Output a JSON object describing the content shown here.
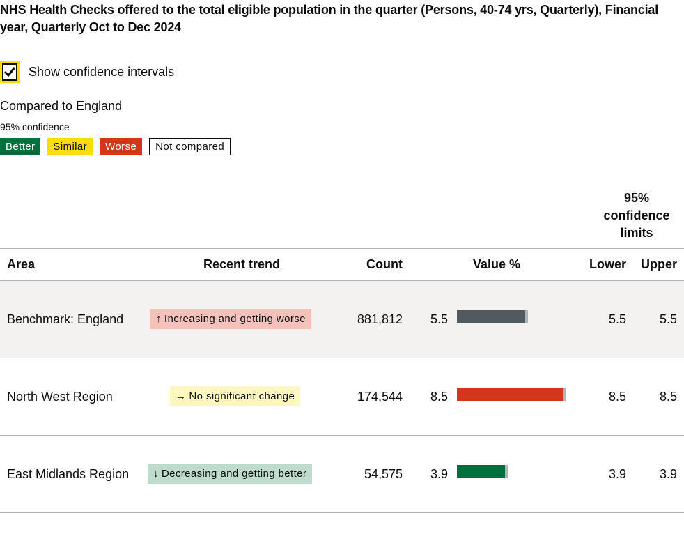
{
  "title": "NHS Health Checks offered to the total eligible population in the quarter (Persons, 40-74 yrs, Quarterly), Financial year, Quarterly Oct to Dec 2024",
  "ci_toggle": {
    "label": "Show confidence intervals",
    "checked": true
  },
  "comparison": {
    "heading": "Compared to England",
    "confidence": "95% confidence",
    "legend": {
      "better": "Better",
      "similar": "Similar",
      "worse": "Worse",
      "not_compared": "Not compared"
    }
  },
  "colors": {
    "better": "#00703c",
    "similar": "#ffdd00",
    "worse": "#d4351c",
    "benchmark": "#505a5f"
  },
  "table": {
    "ci_header": "95% confidence limits",
    "columns": {
      "area": "Area",
      "trend": "Recent trend",
      "count": "Count",
      "value": "Value %",
      "lower": "Lower",
      "upper": "Upper"
    },
    "rows": [
      {
        "area": "Benchmark: England",
        "trend_icon": "arrow-up-icon",
        "trend_arrow": "↑",
        "trend": "Increasing and getting worse",
        "count": "881,812",
        "value": "5.5",
        "value_num": 5.5,
        "lower": "5.5",
        "upper": "5.5",
        "comparison": "benchmark"
      },
      {
        "area": "North West Region",
        "trend_icon": "arrow-right-icon",
        "trend_arrow": "→",
        "trend": "No significant change",
        "count": "174,544",
        "value": "8.5",
        "value_num": 8.5,
        "lower": "8.5",
        "upper": "8.5",
        "comparison": "worse"
      },
      {
        "area": "East Midlands Region",
        "trend_icon": "arrow-down-icon",
        "trend_arrow": "↓",
        "trend": "Decreasing and getting better",
        "count": "54,575",
        "value": "3.9",
        "value_num": 3.9,
        "lower": "3.9",
        "upper": "3.9",
        "comparison": "better"
      }
    ]
  }
}
